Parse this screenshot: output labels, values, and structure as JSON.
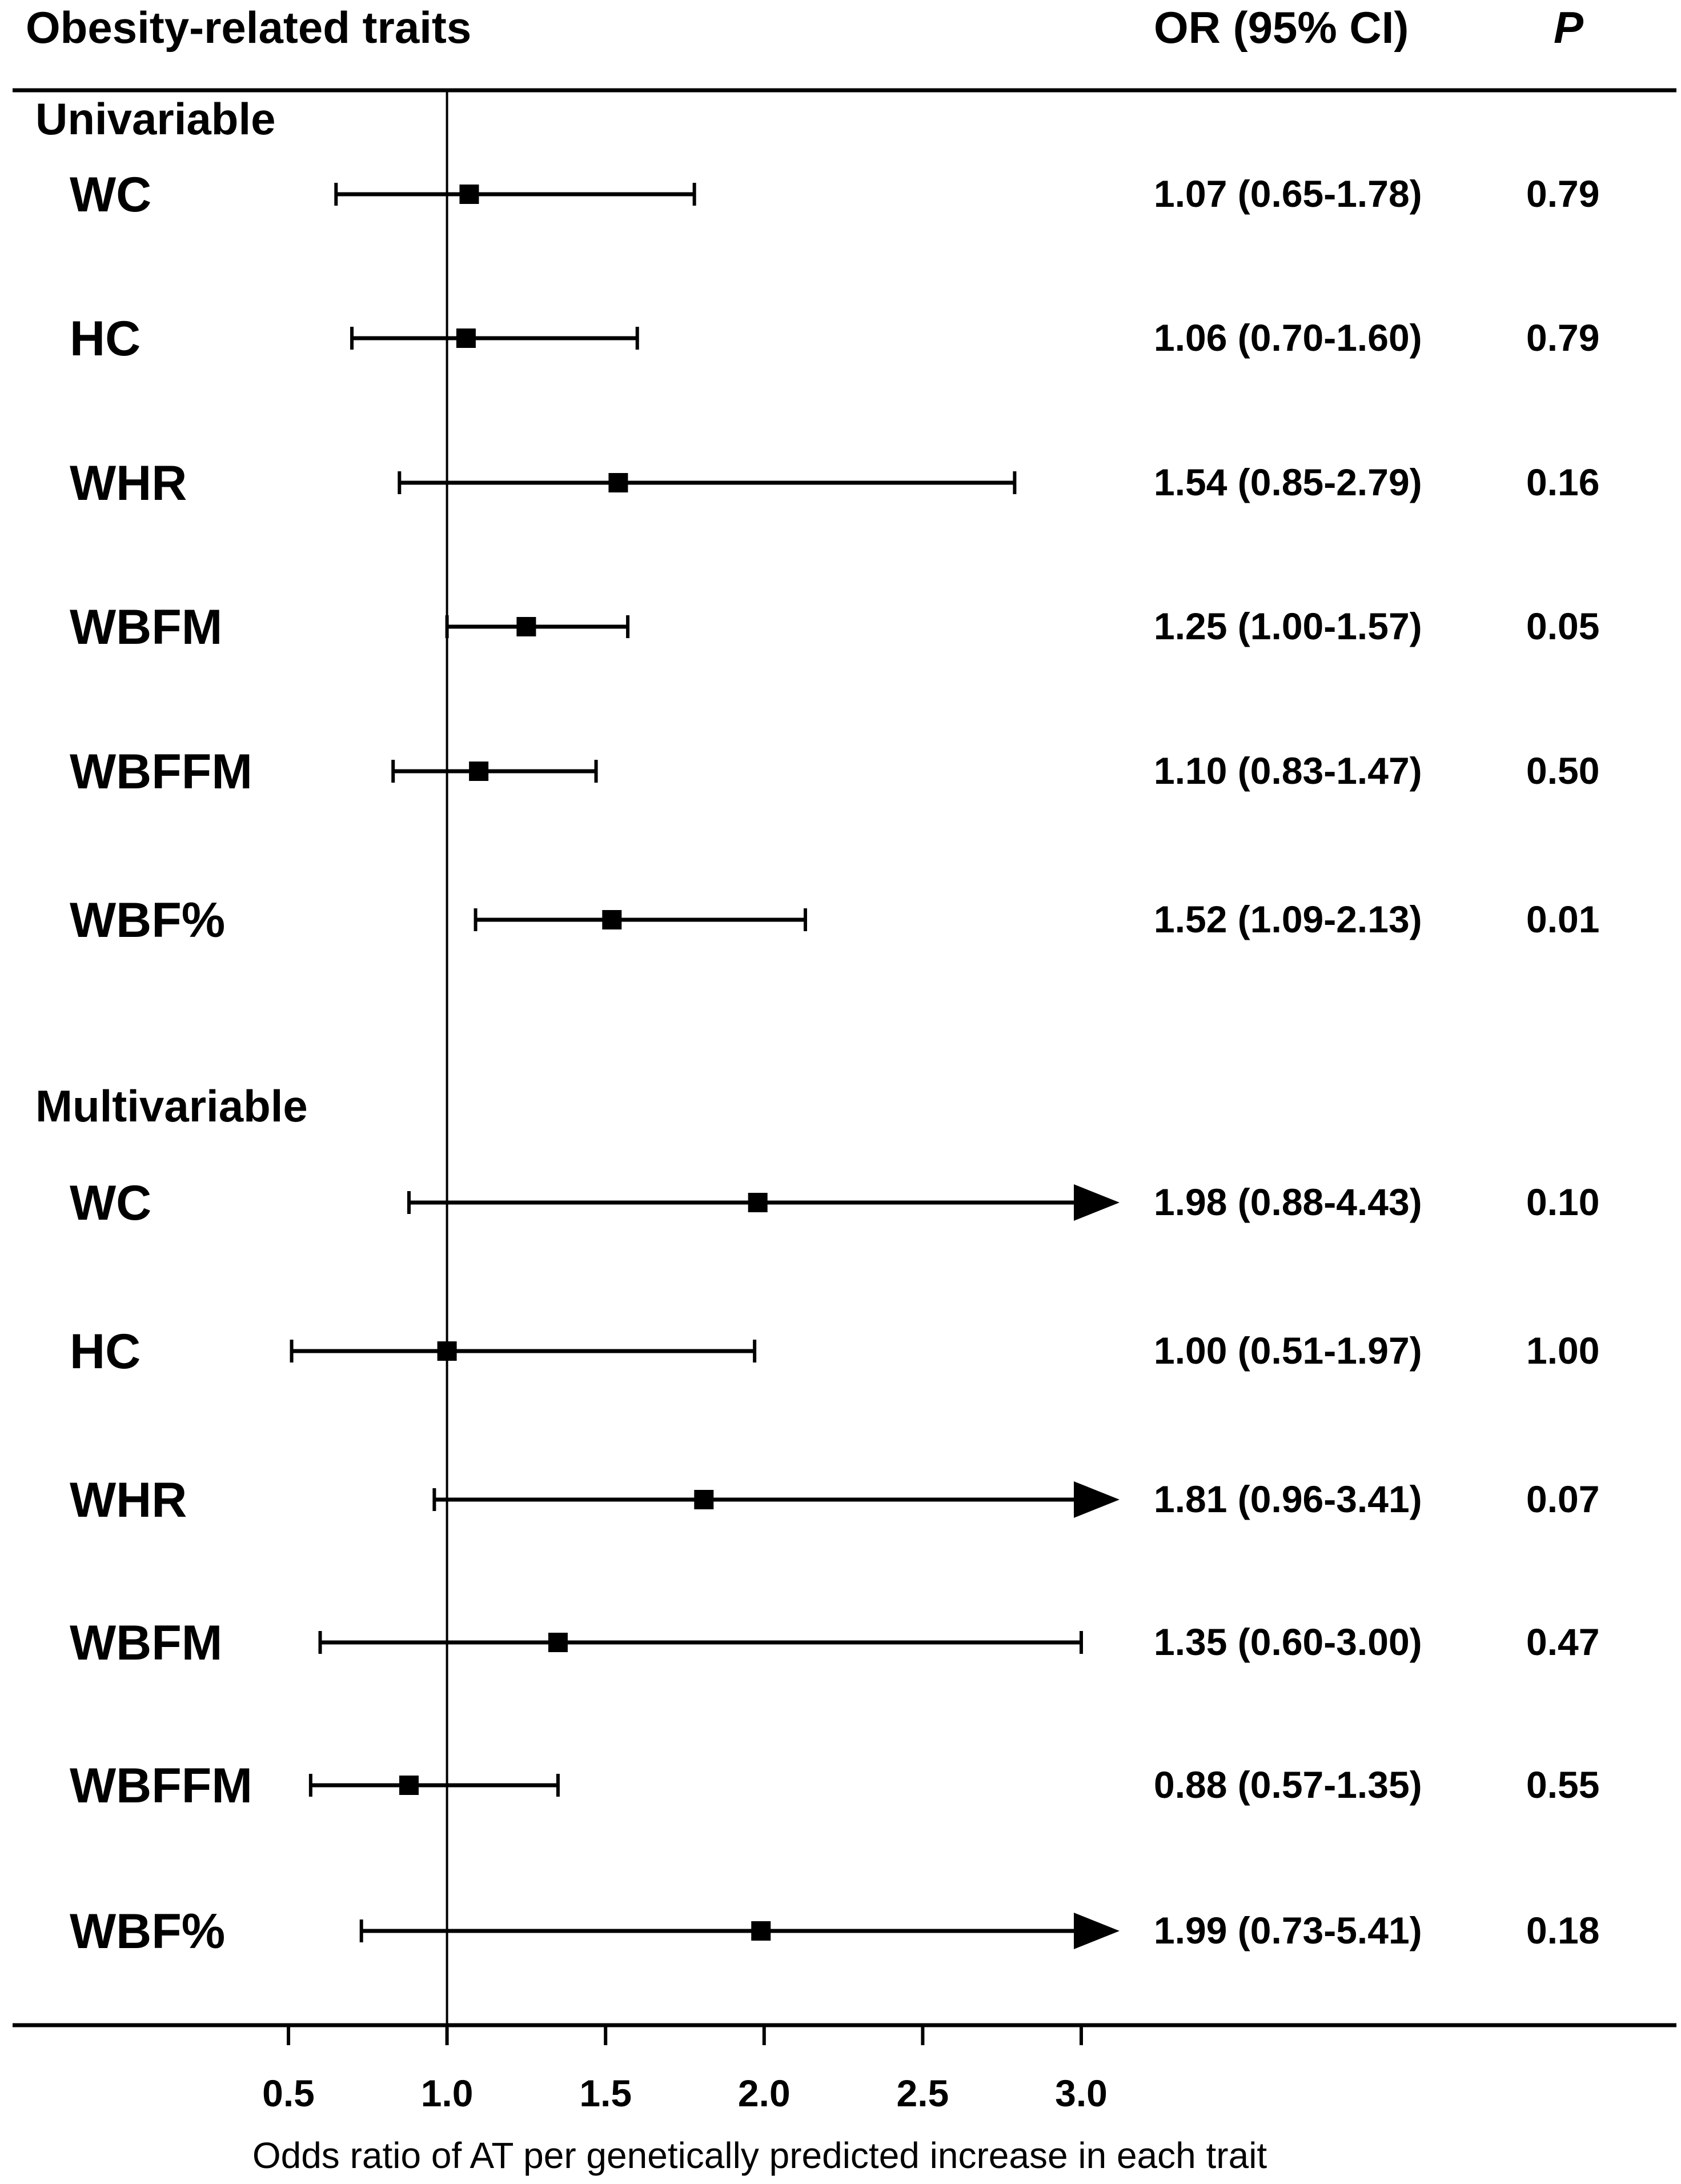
{
  "header": {
    "traits_label": "Obesity-related traits",
    "or_label": "OR (95% CI)",
    "p_label": "P"
  },
  "chart_data": {
    "type": "forest",
    "xlabel": "Odds ratio of AT per genetically predicted increase in each trait",
    "xlim": [
      0.5,
      3.0
    ],
    "xticks": [
      "0.5",
      "1.0",
      "1.5",
      "2.0",
      "2.5",
      "3.0"
    ],
    "reference_line": 1.0,
    "groups": [
      {
        "name": "Univariable",
        "rows": [
          {
            "trait": "WC",
            "or": 1.07,
            "lo": 0.65,
            "hi": 1.78,
            "or_text": "1.07 (0.65-1.78)",
            "p": "0.79",
            "arrow": false
          },
          {
            "trait": "HC",
            "or": 1.06,
            "lo": 0.7,
            "hi": 1.6,
            "or_text": "1.06 (0.70-1.60)",
            "p": "0.79",
            "arrow": false
          },
          {
            "trait": "WHR",
            "or": 1.54,
            "lo": 0.85,
            "hi": 2.79,
            "or_text": "1.54 (0.85-2.79)",
            "p": "0.16",
            "arrow": false
          },
          {
            "trait": "WBFM",
            "or": 1.25,
            "lo": 1.0,
            "hi": 1.57,
            "or_text": "1.25 (1.00-1.57)",
            "p": "0.05",
            "arrow": false
          },
          {
            "trait": "WBFFM",
            "or": 1.1,
            "lo": 0.83,
            "hi": 1.47,
            "or_text": "1.10 (0.83-1.47)",
            "p": "0.50",
            "arrow": false
          },
          {
            "trait": "WBF%",
            "or": 1.52,
            "lo": 1.09,
            "hi": 2.13,
            "or_text": "1.52 (1.09-2.13)",
            "p": "0.01",
            "arrow": false
          }
        ]
      },
      {
        "name": "Multivariable",
        "rows": [
          {
            "trait": "WC",
            "or": 1.98,
            "lo": 0.88,
            "hi": 4.43,
            "or_text": "1.98 (0.88-4.43)",
            "p": "0.10",
            "arrow": true
          },
          {
            "trait": "HC",
            "or": 1.0,
            "lo": 0.51,
            "hi": 1.97,
            "or_text": "1.00 (0.51-1.97)",
            "p": "1.00",
            "arrow": false
          },
          {
            "trait": "WHR",
            "or": 1.81,
            "lo": 0.96,
            "hi": 3.41,
            "or_text": "1.81 (0.96-3.41)",
            "p": "0.07",
            "arrow": true
          },
          {
            "trait": "WBFM",
            "or": 1.35,
            "lo": 0.6,
            "hi": 3.0,
            "or_text": "1.35 (0.60-3.00)",
            "p": "0.47",
            "arrow": false
          },
          {
            "trait": "WBFFM",
            "or": 0.88,
            "lo": 0.57,
            "hi": 1.35,
            "or_text": "0.88 (0.57-1.35)",
            "p": "0.55",
            "arrow": false
          },
          {
            "trait": "WBF%",
            "or": 1.99,
            "lo": 0.73,
            "hi": 5.41,
            "or_text": "1.99 (0.73-5.41)",
            "p": "0.18",
            "arrow": true
          }
        ]
      }
    ]
  }
}
